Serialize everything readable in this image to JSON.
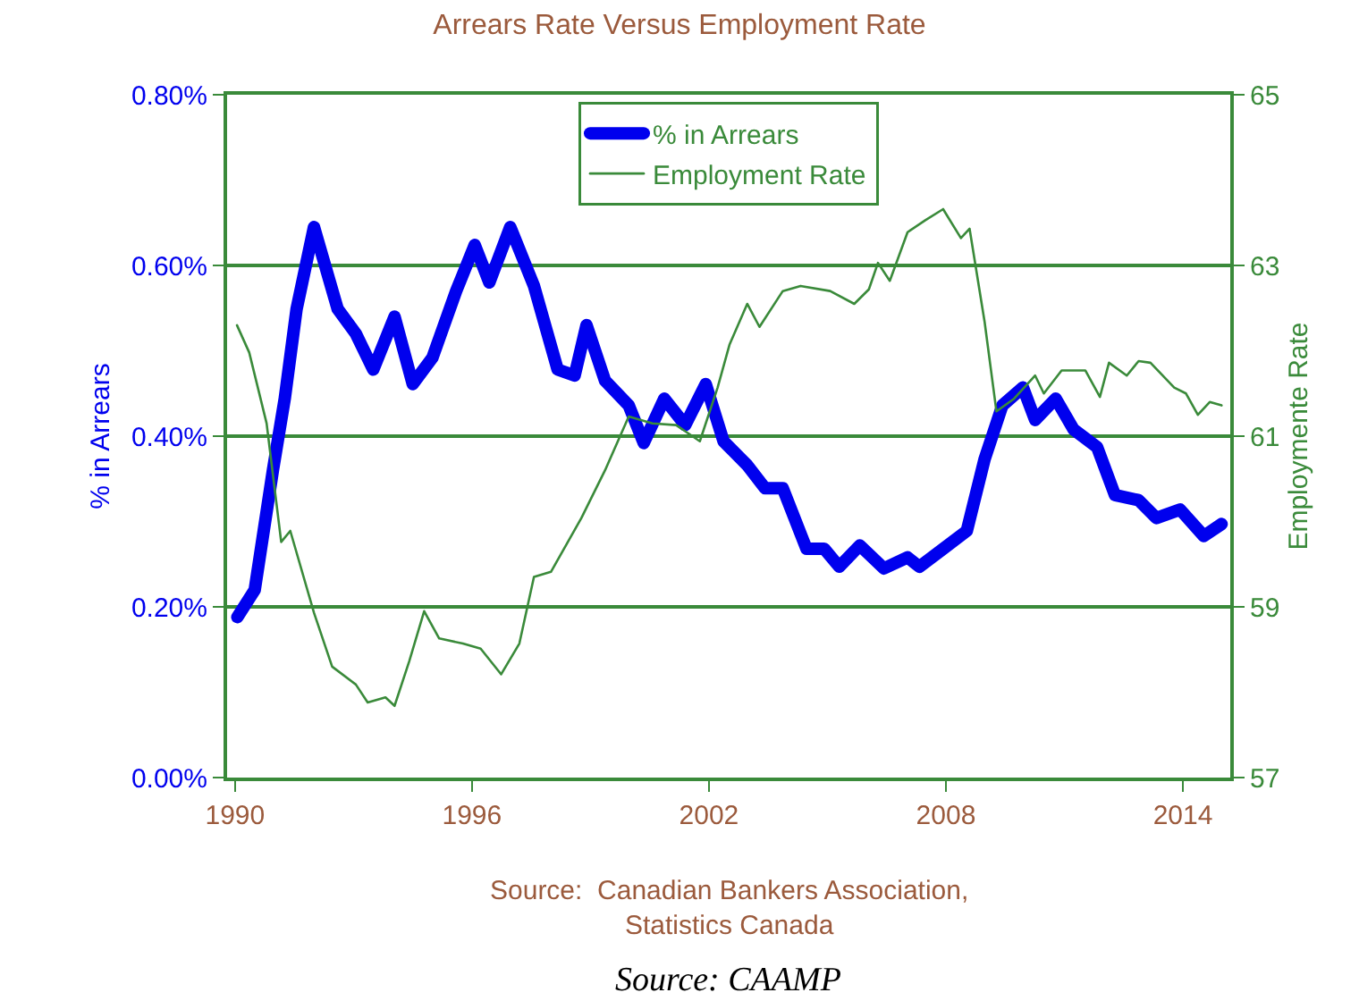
{
  "chart_data": {
    "type": "line",
    "title": "Arrears Rate Versus Employment Rate",
    "ylabel": "% in Arrears",
    "y2label": "Employmente Rate",
    "annotations": [
      "Source:  Canadian Bankers Association,\nStatistics Canada",
      "Source: CAAMP"
    ],
    "xlim": [
      1989.8,
      2015.2
    ],
    "xticks": [
      1990,
      1996,
      2002,
      2008,
      2014
    ],
    "ylim": [
      0,
      0.8
    ],
    "yticks": [
      {
        "value": 0,
        "label": "0.00%"
      },
      {
        "value": 0.2,
        "label": "0.20%"
      },
      {
        "value": 0.4,
        "label": "0.40%"
      },
      {
        "value": 0.6,
        "label": "0.60%"
      },
      {
        "value": 0.8,
        "label": "0.80%"
      }
    ],
    "y2lim": [
      57,
      65
    ],
    "y2ticks": [
      57,
      59,
      61,
      63,
      65
    ],
    "grid": "y",
    "legend": "top",
    "marker": "none",
    "series": [
      {
        "name": "% in Arrears",
        "color": "#0000ee",
        "x": [
          1990.06,
          1990.5,
          1990.96,
          1991.26,
          1991.56,
          1992.0,
          1992.6,
          1993.06,
          1993.5,
          1994.04,
          1994.5,
          1995.0,
          1995.6,
          1996.07,
          1996.44,
          1996.97,
          1997.57,
          1998.17,
          1998.6,
          1998.9,
          1999.37,
          1999.97,
          2000.35,
          2000.87,
          2001.4,
          2001.92,
          2002.37,
          2002.97,
          2003.42,
          2003.87,
          2004.47,
          2004.92,
          2005.3,
          2005.82,
          2006.43,
          2007.03,
          2007.33,
          2007.93,
          2008.53,
          2008.98,
          2009.43,
          2009.95,
          2010.26,
          2010.78,
          2011.23,
          2011.83,
          2012.28,
          2012.88,
          2013.33,
          2013.93,
          2014.53,
          2014.98
        ],
        "values": [
          0.188,
          0.22,
          0.36,
          0.444,
          0.549,
          0.645,
          0.549,
          0.52,
          0.478,
          0.54,
          0.461,
          0.492,
          0.57,
          0.624,
          0.58,
          0.645,
          0.576,
          0.478,
          0.471,
          0.53,
          0.465,
          0.436,
          0.392,
          0.444,
          0.413,
          0.461,
          0.394,
          0.366,
          0.339,
          0.339,
          0.268,
          0.268,
          0.247,
          0.272,
          0.245,
          0.258,
          0.247,
          0.268,
          0.289,
          0.373,
          0.436,
          0.457,
          0.419,
          0.444,
          0.408,
          0.387,
          0.331,
          0.325,
          0.304,
          0.314,
          0.283,
          0.297
        ]
      },
      {
        "name": "Employment Rate",
        "color": "#3a8a3a",
        "axis": "y2",
        "x": [
          1990.05,
          1990.36,
          1990.8,
          1991.17,
          1991.4,
          1992.0,
          1992.46,
          1993.06,
          1993.36,
          1993.81,
          1994.04,
          1994.41,
          1994.79,
          1995.17,
          1995.77,
          1996.22,
          1996.74,
          1997.2,
          1997.57,
          1998.0,
          1998.77,
          1999.37,
          1999.97,
          2000.57,
          2001.17,
          2001.77,
          2002.22,
          2002.52,
          2002.97,
          2003.28,
          2003.87,
          2004.32,
          2005.07,
          2005.68,
          2006.05,
          2006.28,
          2006.58,
          2007.03,
          2007.48,
          2007.93,
          2008.38,
          2008.6,
          2008.98,
          2009.28,
          2009.73,
          2010.26,
          2010.48,
          2010.93,
          2011.53,
          2011.9,
          2012.13,
          2012.58,
          2012.88,
          2013.18,
          2013.78,
          2014.08,
          2014.38,
          2014.68,
          2014.98
        ],
        "values": [
          62.3,
          61.98,
          61.15,
          59.76,
          59.89,
          58.93,
          58.3,
          58.09,
          57.88,
          57.94,
          57.84,
          58.36,
          58.95,
          58.63,
          58.57,
          58.51,
          58.21,
          58.57,
          59.35,
          59.41,
          60.04,
          60.6,
          61.23,
          61.15,
          61.13,
          60.94,
          61.57,
          62.07,
          62.55,
          62.28,
          62.7,
          62.76,
          62.7,
          62.55,
          62.72,
          63.03,
          62.82,
          63.39,
          63.53,
          63.66,
          63.32,
          63.43,
          62.34,
          61.29,
          61.44,
          61.71,
          61.5,
          61.77,
          61.77,
          61.46,
          61.86,
          61.71,
          61.88,
          61.86,
          61.57,
          61.5,
          61.25,
          61.4,
          61.36
        ]
      }
    ]
  }
}
